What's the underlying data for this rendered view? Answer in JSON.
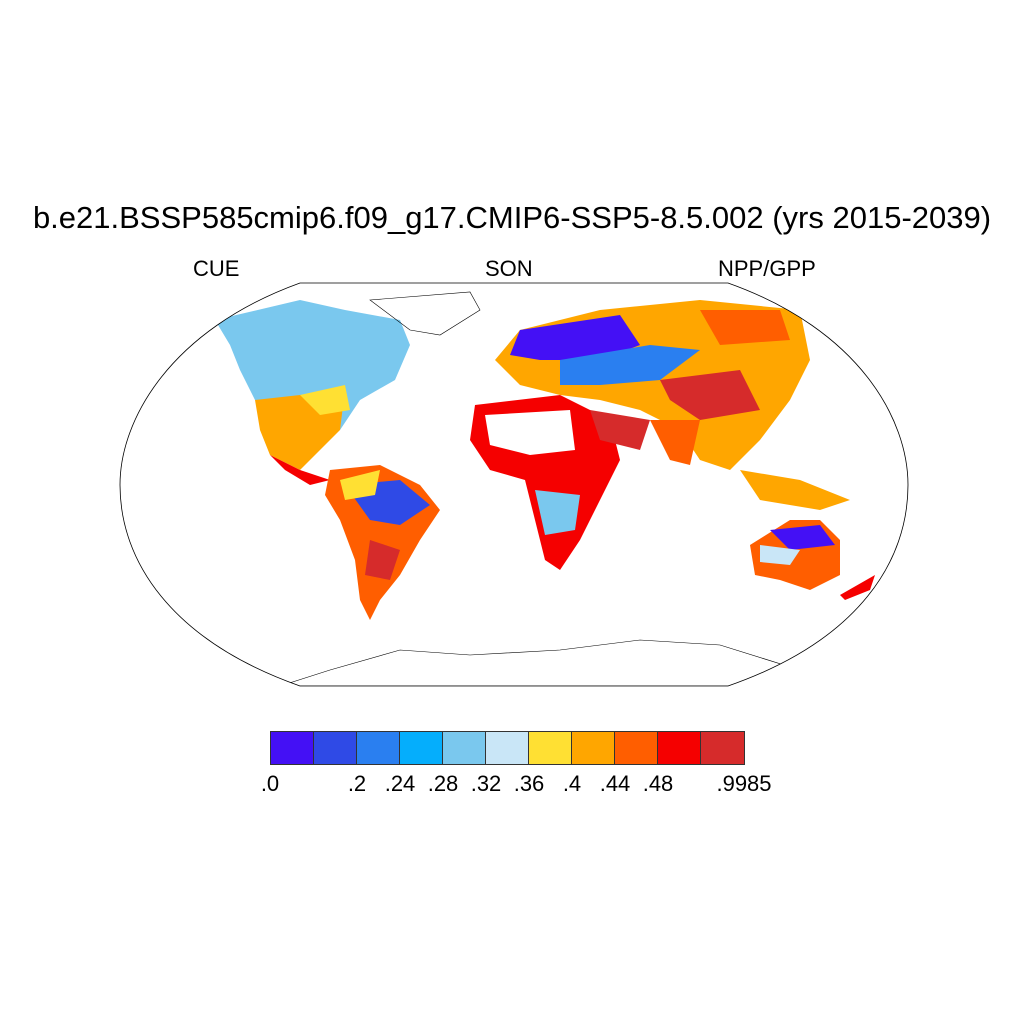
{
  "title": "b.e21.BSSP585cmip6.f09_g17.CMIP6-SSP5-8.5.002 (yrs 2015-2039)",
  "left_string": "CUE",
  "center_string": "SON",
  "right_string": "NPP/GPP",
  "colorbar": {
    "colors": [
      "#4410f5",
      "#2f4ae6",
      "#2a7ff0",
      "#05aefc",
      "#7ac8ee",
      "#c9e6f7",
      "#ffe033",
      "#ffa600",
      "#ff5e00",
      "#f50000",
      "#d62b2b"
    ],
    "labels": [
      ".0",
      ".2",
      ".24",
      ".28",
      ".32",
      ".36",
      ".4",
      ".44",
      ".48",
      ".9985"
    ]
  }
}
